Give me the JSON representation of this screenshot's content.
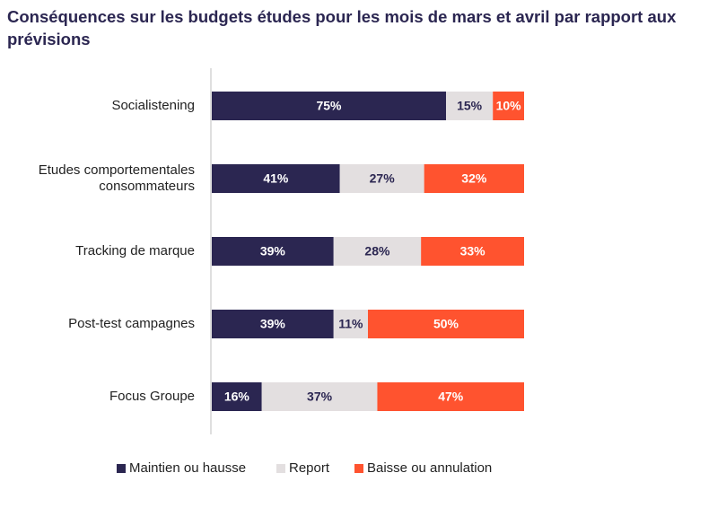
{
  "chart_data": {
    "type": "bar",
    "orientation": "horizontal",
    "stacked": true,
    "title": "Conséquences sur les budgets études pour les mois de mars et avril par rapport aux prévisions",
    "categories": [
      [
        "Socialistening"
      ],
      [
        "Etudes comportementales",
        "consommateurs"
      ],
      [
        "Tracking de marque"
      ],
      [
        "Post-test campagnes"
      ],
      [
        "Focus Groupe"
      ]
    ],
    "series": [
      {
        "name": "Maintien ou hausse",
        "color": "#2b2651",
        "label_color": "#ffffff",
        "values": [
          75,
          41,
          39,
          39,
          16
        ],
        "labels": [
          "75%",
          "41%",
          "39%",
          "39%",
          "16%"
        ]
      },
      {
        "name": "Report",
        "color": "#e3dfe0",
        "label_color": "#2b2651",
        "values": [
          15,
          27,
          28,
          11,
          37
        ],
        "labels": [
          "15%",
          "27%",
          "28%",
          "11%",
          "37%"
        ]
      },
      {
        "name": "Baisse ou annulation",
        "color": "#ff532f",
        "label_color": "#ffffff",
        "values": [
          10,
          32,
          33,
          50,
          47
        ],
        "labels": [
          "10%",
          "32%",
          "33%",
          "50%",
          "47%"
        ]
      }
    ],
    "xlim": [
      0,
      100
    ],
    "grid": false,
    "legend_position": "bottom"
  }
}
